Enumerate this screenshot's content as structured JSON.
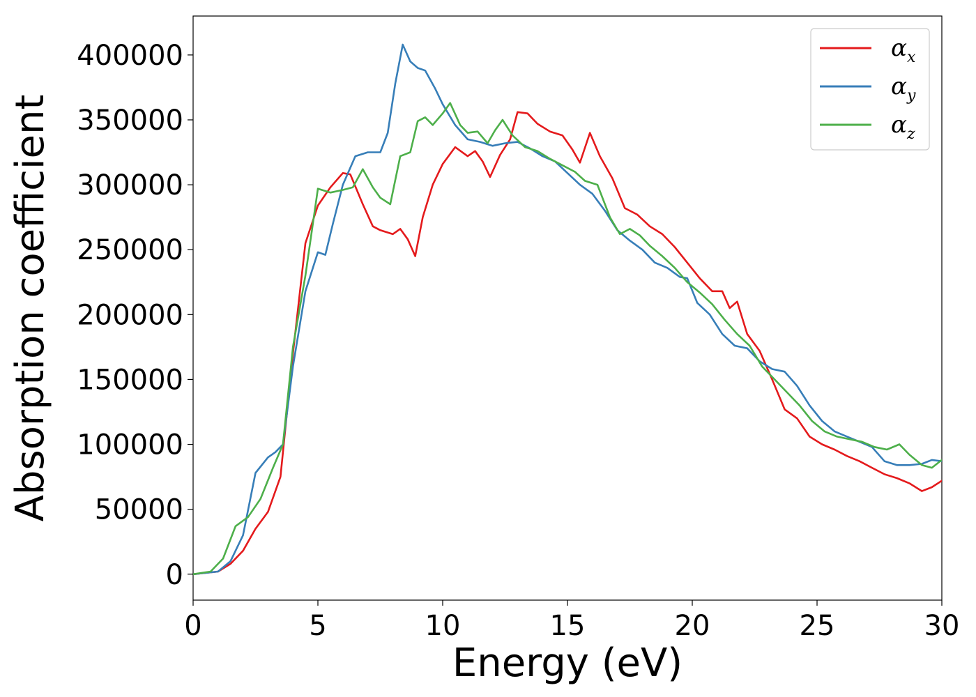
{
  "chart_data": {
    "type": "line",
    "xlabel": "Energy (eV)",
    "ylabel": "Absorption coefficient",
    "xlim": [
      0,
      30
    ],
    "ylim": [
      -20000,
      430000
    ],
    "x_ticks": [
      0,
      5,
      10,
      15,
      20,
      25,
      30
    ],
    "x_tick_labels": [
      "0",
      "5",
      "10",
      "15",
      "20",
      "25",
      "30"
    ],
    "y_ticks": [
      0,
      50000,
      100000,
      150000,
      200000,
      250000,
      300000,
      350000,
      400000
    ],
    "y_tick_labels": [
      "0",
      "50000",
      "100000",
      "150000",
      "200000",
      "250000",
      "300000",
      "350000",
      "400000"
    ],
    "grid": false,
    "legend_position": "top-right",
    "series": [
      {
        "name": "α_x",
        "label_main": "α",
        "label_sub": "x",
        "color": "#e41a1c",
        "points": [
          [
            0,
            0
          ],
          [
            1,
            2000
          ],
          [
            1.5,
            8000
          ],
          [
            2,
            18000
          ],
          [
            2.5,
            35000
          ],
          [
            3,
            48000
          ],
          [
            3.5,
            75000
          ],
          [
            4,
            170000
          ],
          [
            4.5,
            255000
          ],
          [
            5,
            284000
          ],
          [
            5.5,
            298000
          ],
          [
            6,
            309000
          ],
          [
            6.3,
            308000
          ],
          [
            6.8,
            285000
          ],
          [
            7.2,
            268000
          ],
          [
            7.5,
            265000
          ],
          [
            8,
            262000
          ],
          [
            8.3,
            266000
          ],
          [
            8.6,
            258000
          ],
          [
            8.9,
            245000
          ],
          [
            9.2,
            275000
          ],
          [
            9.6,
            300000
          ],
          [
            10,
            316000
          ],
          [
            10.5,
            329000
          ],
          [
            11,
            322000
          ],
          [
            11.3,
            326000
          ],
          [
            11.6,
            318000
          ],
          [
            11.9,
            306000
          ],
          [
            12.3,
            323000
          ],
          [
            12.7,
            335000
          ],
          [
            13,
            356000
          ],
          [
            13.4,
            355000
          ],
          [
            13.8,
            347000
          ],
          [
            14.3,
            341000
          ],
          [
            14.8,
            338000
          ],
          [
            15.2,
            327000
          ],
          [
            15.5,
            317000
          ],
          [
            15.9,
            340000
          ],
          [
            16.3,
            322000
          ],
          [
            16.8,
            305000
          ],
          [
            17.3,
            282000
          ],
          [
            17.8,
            277000
          ],
          [
            18.3,
            268000
          ],
          [
            18.8,
            262000
          ],
          [
            19.3,
            252000
          ],
          [
            19.8,
            240000
          ],
          [
            20.3,
            228000
          ],
          [
            20.8,
            218000
          ],
          [
            21.2,
            218000
          ],
          [
            21.5,
            205000
          ],
          [
            21.8,
            210000
          ],
          [
            22.2,
            185000
          ],
          [
            22.7,
            172000
          ],
          [
            23.2,
            150000
          ],
          [
            23.7,
            127000
          ],
          [
            24.2,
            120000
          ],
          [
            24.7,
            106000
          ],
          [
            25.2,
            100000
          ],
          [
            25.7,
            96000
          ],
          [
            26.2,
            91000
          ],
          [
            26.7,
            87000
          ],
          [
            27.2,
            82000
          ],
          [
            27.7,
            77000
          ],
          [
            28.2,
            74000
          ],
          [
            28.7,
            70000
          ],
          [
            29.2,
            64000
          ],
          [
            29.6,
            67000
          ],
          [
            30,
            72000
          ]
        ]
      },
      {
        "name": "α_y",
        "label_main": "α",
        "label_sub": "y",
        "color": "#377eb8",
        "points": [
          [
            0,
            0
          ],
          [
            1,
            2000
          ],
          [
            1.5,
            10000
          ],
          [
            2,
            30000
          ],
          [
            2.5,
            78000
          ],
          [
            3,
            90000
          ],
          [
            3.3,
            94000
          ],
          [
            3.6,
            100000
          ],
          [
            4,
            160000
          ],
          [
            4.5,
            218000
          ],
          [
            5,
            248000
          ],
          [
            5.3,
            246000
          ],
          [
            5.6,
            270000
          ],
          [
            6,
            300000
          ],
          [
            6.5,
            322000
          ],
          [
            7,
            325000
          ],
          [
            7.5,
            325000
          ],
          [
            7.8,
            340000
          ],
          [
            8.1,
            378000
          ],
          [
            8.4,
            408000
          ],
          [
            8.7,
            395000
          ],
          [
            9,
            390000
          ],
          [
            9.3,
            388000
          ],
          [
            9.7,
            374000
          ],
          [
            10,
            362000
          ],
          [
            10.5,
            346000
          ],
          [
            11,
            335000
          ],
          [
            11.5,
            333000
          ],
          [
            12,
            330000
          ],
          [
            12.5,
            332000
          ],
          [
            13,
            333000
          ],
          [
            13.5,
            328000
          ],
          [
            14,
            322000
          ],
          [
            14.5,
            318000
          ],
          [
            15,
            309000
          ],
          [
            15.5,
            300000
          ],
          [
            16,
            293000
          ],
          [
            16.5,
            280000
          ],
          [
            17,
            265000
          ],
          [
            17.5,
            257000
          ],
          [
            18,
            250000
          ],
          [
            18.5,
            240000
          ],
          [
            19,
            236000
          ],
          [
            19.5,
            229000
          ],
          [
            19.8,
            228000
          ],
          [
            20.2,
            209000
          ],
          [
            20.7,
            200000
          ],
          [
            21.2,
            185000
          ],
          [
            21.7,
            176000
          ],
          [
            22.2,
            174000
          ],
          [
            22.7,
            164000
          ],
          [
            23.2,
            158000
          ],
          [
            23.7,
            156000
          ],
          [
            24.2,
            145000
          ],
          [
            24.7,
            130000
          ],
          [
            25.2,
            118000
          ],
          [
            25.7,
            110000
          ],
          [
            26.2,
            106000
          ],
          [
            26.7,
            102000
          ],
          [
            27.2,
            98000
          ],
          [
            27.7,
            87000
          ],
          [
            28.2,
            84000
          ],
          [
            28.7,
            84000
          ],
          [
            29.2,
            85000
          ],
          [
            29.6,
            88000
          ],
          [
            30,
            87000
          ]
        ]
      },
      {
        "name": "α_z",
        "label_main": "α",
        "label_sub": "z",
        "color": "#4daf4a",
        "points": [
          [
            0,
            0
          ],
          [
            0.7,
            2000
          ],
          [
            1.2,
            12000
          ],
          [
            1.7,
            37000
          ],
          [
            2.2,
            44000
          ],
          [
            2.7,
            58000
          ],
          [
            3.2,
            82000
          ],
          [
            3.6,
            100000
          ],
          [
            4,
            175000
          ],
          [
            4.5,
            230000
          ],
          [
            5,
            297000
          ],
          [
            5.5,
            294000
          ],
          [
            6,
            296000
          ],
          [
            6.4,
            298000
          ],
          [
            6.8,
            312000
          ],
          [
            7.2,
            298000
          ],
          [
            7.5,
            290000
          ],
          [
            7.9,
            285000
          ],
          [
            8.3,
            322000
          ],
          [
            8.7,
            325000
          ],
          [
            9,
            349000
          ],
          [
            9.3,
            352000
          ],
          [
            9.6,
            346000
          ],
          [
            10,
            355000
          ],
          [
            10.3,
            363000
          ],
          [
            10.7,
            346000
          ],
          [
            11,
            340000
          ],
          [
            11.4,
            341000
          ],
          [
            11.8,
            332000
          ],
          [
            12.1,
            342000
          ],
          [
            12.4,
            350000
          ],
          [
            12.8,
            338000
          ],
          [
            13.3,
            329000
          ],
          [
            13.8,
            326000
          ],
          [
            14.3,
            320000
          ],
          [
            14.8,
            315000
          ],
          [
            15.3,
            310000
          ],
          [
            15.7,
            303000
          ],
          [
            16.2,
            300000
          ],
          [
            16.7,
            275000
          ],
          [
            17.1,
            262000
          ],
          [
            17.5,
            266000
          ],
          [
            17.9,
            261000
          ],
          [
            18.3,
            253000
          ],
          [
            18.8,
            245000
          ],
          [
            19.3,
            236000
          ],
          [
            19.8,
            225000
          ],
          [
            20.3,
            217000
          ],
          [
            20.8,
            208000
          ],
          [
            21.3,
            196000
          ],
          [
            21.8,
            185000
          ],
          [
            22.3,
            176000
          ],
          [
            22.8,
            160000
          ],
          [
            23.3,
            150000
          ],
          [
            23.8,
            140000
          ],
          [
            24.3,
            130000
          ],
          [
            24.8,
            118000
          ],
          [
            25.3,
            110000
          ],
          [
            25.8,
            106000
          ],
          [
            26.3,
            104000
          ],
          [
            26.8,
            102000
          ],
          [
            27.3,
            98000
          ],
          [
            27.8,
            96000
          ],
          [
            28.3,
            100000
          ],
          [
            28.7,
            92000
          ],
          [
            29.2,
            84000
          ],
          [
            29.6,
            82000
          ],
          [
            30,
            88000
          ]
        ]
      }
    ]
  }
}
